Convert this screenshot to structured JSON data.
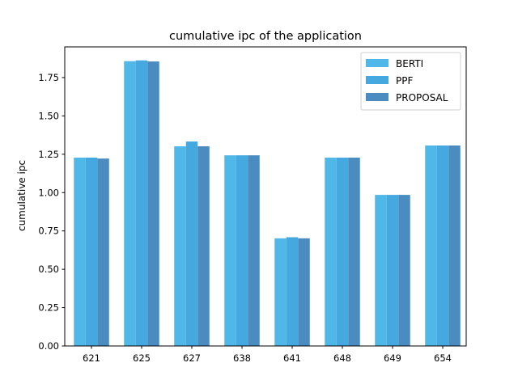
{
  "chart_data": {
    "type": "bar",
    "title": "cumulative ipc of the application",
    "xlabel": "",
    "ylabel": "cumulative ipc",
    "categories": [
      "621",
      "625",
      "627",
      "638",
      "641",
      "648",
      "649",
      "654"
    ],
    "series": [
      {
        "name": "BERTI",
        "color": "#4fb8e8",
        "values": [
          1.228,
          1.857,
          1.302,
          1.243,
          0.702,
          1.228,
          0.985,
          1.307
        ]
      },
      {
        "name": "PPF",
        "color": "#45a8de",
        "values": [
          1.228,
          1.862,
          1.333,
          1.243,
          0.709,
          1.228,
          0.985,
          1.307
        ]
      },
      {
        "name": "PROPOSAL",
        "color": "#4a8cc0",
        "values": [
          1.222,
          1.855,
          1.302,
          1.243,
          0.702,
          1.228,
          0.985,
          1.307
        ]
      }
    ],
    "ylim": [
      0,
      1.95
    ],
    "yticks": [
      0.0,
      0.25,
      0.5,
      0.75,
      1.0,
      1.25,
      1.5,
      1.75
    ],
    "ytick_labels": [
      "0.00",
      "0.25",
      "0.50",
      "0.75",
      "1.00",
      "1.25",
      "1.50",
      "1.75"
    ],
    "grid": false,
    "legend_position": "top-right"
  }
}
